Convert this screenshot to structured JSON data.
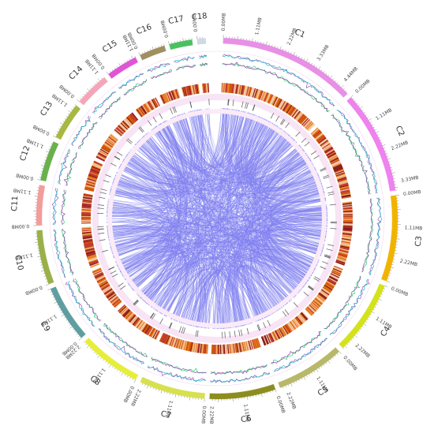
{
  "chart_data": {
    "type": "circos",
    "title": "",
    "unit_label": "MB",
    "chromosomes": [
      {
        "name": "C1",
        "length_mb": 4.8,
        "color": "#e88fe6",
        "tick_labels": [
          "0.00MB",
          "1.11MB",
          "2.22MB",
          "3.33MB",
          "4.44MB"
        ]
      },
      {
        "name": "C2",
        "length_mb": 3.6,
        "color": "#ee82ee",
        "tick_labels": [
          "0.00MB",
          "1.11MB",
          "2.22MB",
          "3.33MB"
        ]
      },
      {
        "name": "C3",
        "length_mb": 3.0,
        "color": "#f0b400",
        "tick_labels": [
          "0.00MB",
          "1.11MB",
          "2.22MB"
        ]
      },
      {
        "name": "C4",
        "length_mb": 2.6,
        "color": "#d4e21a",
        "tick_labels": [
          "0.00MB",
          "1.11MB",
          "2.22MB"
        ]
      },
      {
        "name": "C5",
        "length_mb": 2.4,
        "color": "#b8b86a",
        "tick_labels": [
          "0.00MB",
          "1.11MB",
          "2.22MB"
        ]
      },
      {
        "name": "C6",
        "length_mb": 2.3,
        "color": "#8d8d1f",
        "tick_labels": [
          "0.00MB",
          "1.11MB",
          "2.22MB"
        ]
      },
      {
        "name": "C7",
        "length_mb": 2.3,
        "color": "#d7e04e",
        "tick_labels": [
          "0.00MB",
          "1.11MB",
          "2.22MB"
        ]
      },
      {
        "name": "C8",
        "length_mb": 2.2,
        "color": "#e6ee3a",
        "tick_labels": [
          "0.00MB",
          "1.11MB",
          "2.22MB"
        ]
      },
      {
        "name": "C9",
        "length_mb": 2.0,
        "color": "#5f9ea0",
        "tick_labels": [
          "0.00MB",
          "1.11MB"
        ]
      },
      {
        "name": "C10",
        "length_mb": 1.9,
        "color": "#9ab04a",
        "tick_labels": [
          "0.00MB",
          "1.11MB"
        ]
      },
      {
        "name": "C11",
        "length_mb": 1.4,
        "color": "#f29c9c",
        "tick_labels": [
          "0.00MB",
          "1.11MB"
        ]
      },
      {
        "name": "C12",
        "length_mb": 1.4,
        "color": "#6ab04c",
        "tick_labels": [
          "0.00MB",
          "1.11MB"
        ]
      },
      {
        "name": "C13",
        "length_mb": 1.3,
        "color": "#a8b840",
        "tick_labels": [
          "0.00MB",
          "1.11MB"
        ]
      },
      {
        "name": "C14",
        "length_mb": 1.2,
        "color": "#f4a6b8",
        "tick_labels": [
          "0.00MB",
          "1.11MB"
        ]
      },
      {
        "name": "C15",
        "length_mb": 1.1,
        "color": "#e055d8",
        "tick_labels": [
          "0.00MB",
          "1.11MB"
        ]
      },
      {
        "name": "C16",
        "length_mb": 0.9,
        "color": "#a09060",
        "tick_labels": [
          "0.00MB"
        ]
      },
      {
        "name": "C17",
        "length_mb": 0.8,
        "color": "#4bc060",
        "tick_labels": [
          "0.00MB"
        ]
      },
      {
        "name": "C18",
        "length_mb": 0.3,
        "color": "#cfd8e8",
        "tick_labels": [
          "0.00MB"
        ]
      }
    ],
    "tracks": [
      "gc-content-line",
      "gc-skew-line",
      "gene-density-heatmap",
      "feature-ticks"
    ],
    "heatmap_colors": [
      "#8b1a1a",
      "#c0392b",
      "#d35400",
      "#e67e22",
      "#f0b27a",
      "#f5cba7"
    ],
    "link_color": "#8080f0",
    "link_count": 900
  }
}
